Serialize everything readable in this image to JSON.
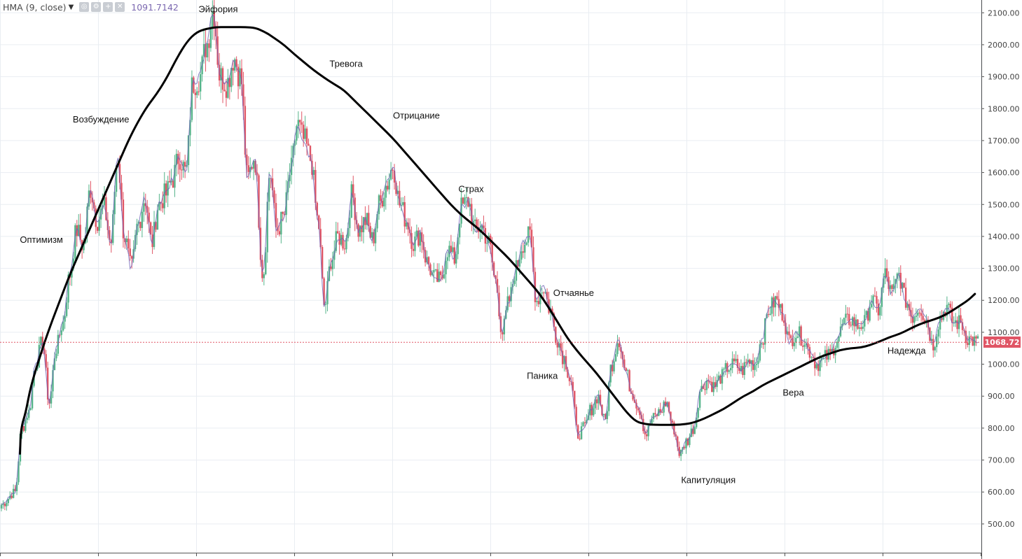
{
  "legend": {
    "indicator": "HMA (9, close)",
    "value": "1091.7142",
    "icons": [
      "settings-icon",
      "gear-icon",
      "add-icon",
      "close-icon"
    ]
  },
  "current_price": {
    "label": "1068.72",
    "value": 1068.72,
    "color": "#e05565"
  },
  "colors": {
    "up": "#55b48a",
    "down": "#e05565",
    "hma": "#6b5fb5",
    "grid": "#e9edf2",
    "axis_text": "#444444",
    "curve": "#000000"
  },
  "chart_data": {
    "type": "line",
    "ylim": [
      410,
      2140
    ],
    "xlim": [
      0,
      100
    ],
    "ytick_labels": [
      "500.00",
      "600.00",
      "700.00",
      "800.00",
      "900.00",
      "1000.00",
      "1100.00",
      "1200.00",
      "1300.00",
      "1400.00",
      "1500.00",
      "1600.00",
      "1700.00",
      "1800.00",
      "1900.00",
      "2000.00",
      "2100.00"
    ],
    "ytick_values": [
      500,
      600,
      700,
      800,
      900,
      1000,
      1100,
      1200,
      1300,
      1400,
      1500,
      1600,
      1700,
      1800,
      1900,
      2000,
      2100
    ],
    "price_anchors": [
      [
        0,
        560
      ],
      [
        1.4,
        600
      ],
      [
        2.1,
        800
      ],
      [
        2.8,
        850
      ],
      [
        3.5,
        1000
      ],
      [
        4.2,
        1070
      ],
      [
        4.9,
        880
      ],
      [
        5.6,
        1050
      ],
      [
        6.3,
        1130
      ],
      [
        7.0,
        1280
      ],
      [
        7.7,
        1420
      ],
      [
        8.4,
        1370
      ],
      [
        9.1,
        1550
      ],
      [
        9.8,
        1450
      ],
      [
        10.5,
        1490
      ],
      [
        11.2,
        1380
      ],
      [
        11.9,
        1650
      ],
      [
        12.6,
        1400
      ],
      [
        13.3,
        1300
      ],
      [
        14.0,
        1440
      ],
      [
        14.7,
        1520
      ],
      [
        15.4,
        1380
      ],
      [
        16.1,
        1500
      ],
      [
        16.8,
        1530
      ],
      [
        17.5,
        1580
      ],
      [
        18.2,
        1650
      ],
      [
        18.9,
        1600
      ],
      [
        19.6,
        1880
      ],
      [
        20.3,
        1900
      ],
      [
        21.0,
        2000
      ],
      [
        21.7,
        2110
      ],
      [
        22.4,
        1900
      ],
      [
        23.1,
        1880
      ],
      [
        23.8,
        1960
      ],
      [
        24.5,
        1900
      ],
      [
        25.2,
        1580
      ],
      [
        25.9,
        1650
      ],
      [
        26.8,
        1280
      ],
      [
        27.5,
        1600
      ],
      [
        28.2,
        1420
      ],
      [
        28.9,
        1460
      ],
      [
        29.6,
        1600
      ],
      [
        30.3,
        1750
      ],
      [
        31.0,
        1700
      ],
      [
        31.7,
        1640
      ],
      [
        32.4,
        1450
      ],
      [
        33.1,
        1180
      ],
      [
        33.8,
        1330
      ],
      [
        34.5,
        1400
      ],
      [
        35.2,
        1380
      ],
      [
        35.9,
        1530
      ],
      [
        36.6,
        1420
      ],
      [
        37.3,
        1450
      ],
      [
        38.0,
        1390
      ],
      [
        38.7,
        1500
      ],
      [
        39.4,
        1560
      ],
      [
        40.1,
        1620
      ],
      [
        40.8,
        1500
      ],
      [
        41.5,
        1450
      ],
      [
        42.2,
        1380
      ],
      [
        42.9,
        1410
      ],
      [
        43.6,
        1320
      ],
      [
        44.3,
        1270
      ],
      [
        45.0,
        1260
      ],
      [
        45.7,
        1360
      ],
      [
        46.4,
        1330
      ],
      [
        47.1,
        1490
      ],
      [
        47.8,
        1510
      ],
      [
        48.5,
        1420
      ],
      [
        49.2,
        1430
      ],
      [
        49.9,
        1380
      ],
      [
        50.6,
        1260
      ],
      [
        51.3,
        1100
      ],
      [
        52.0,
        1200
      ],
      [
        52.7,
        1300
      ],
      [
        53.4,
        1380
      ],
      [
        54.1,
        1400
      ],
      [
        54.8,
        1200
      ],
      [
        55.5,
        1240
      ],
      [
        56.2,
        1170
      ],
      [
        56.9,
        1080
      ],
      [
        57.6,
        1020
      ],
      [
        58.3,
        950
      ],
      [
        59.0,
        780
      ],
      [
        59.7,
        800
      ],
      [
        60.4,
        860
      ],
      [
        61.1,
        900
      ],
      [
        61.8,
        820
      ],
      [
        62.5,
        1000
      ],
      [
        63.2,
        1080
      ],
      [
        63.9,
        980
      ],
      [
        64.6,
        910
      ],
      [
        65.3,
        860
      ],
      [
        66.0,
        780
      ],
      [
        66.7,
        830
      ],
      [
        67.4,
        850
      ],
      [
        68.1,
        880
      ],
      [
        68.8,
        800
      ],
      [
        69.5,
        720
      ],
      [
        70.2,
        760
      ],
      [
        70.9,
        800
      ],
      [
        71.6,
        920
      ],
      [
        72.3,
        950
      ],
      [
        73.0,
        930
      ],
      [
        73.7,
        960
      ],
      [
        74.4,
        990
      ],
      [
        75.1,
        1000
      ],
      [
        75.8,
        980
      ],
      [
        76.5,
        1010
      ],
      [
        77.2,
        1000
      ],
      [
        77.9,
        1080
      ],
      [
        78.6,
        1170
      ],
      [
        79.3,
        1200
      ],
      [
        80.0,
        1160
      ],
      [
        80.7,
        1070
      ],
      [
        81.4,
        1100
      ],
      [
        82.1,
        1080
      ],
      [
        82.8,
        1040
      ],
      [
        83.5,
        1000
      ],
      [
        84.2,
        1020
      ],
      [
        84.9,
        1030
      ],
      [
        85.6,
        1080
      ],
      [
        86.3,
        1130
      ],
      [
        87.0,
        1140
      ],
      [
        87.7,
        1120
      ],
      [
        88.4,
        1130
      ],
      [
        89.1,
        1200
      ],
      [
        89.8,
        1170
      ],
      [
        90.5,
        1280
      ],
      [
        91.2,
        1220
      ],
      [
        91.9,
        1280
      ],
      [
        92.6,
        1200
      ],
      [
        93.3,
        1150
      ],
      [
        94.0,
        1180
      ],
      [
        94.7,
        1140
      ],
      [
        95.4,
        1060
      ],
      [
        96.1,
        1140
      ],
      [
        96.8,
        1180
      ],
      [
        97.5,
        1130
      ],
      [
        98.2,
        1130
      ],
      [
        99.0,
        1080
      ],
      [
        100,
        1068
      ]
    ],
    "annotations": [
      {
        "text": "Эйфория",
        "x": 22.2,
        "y": 2110
      },
      {
        "text": "Тревога",
        "x": 35.3,
        "y": 1940
      },
      {
        "text": "Возбуждение",
        "x": 10.2,
        "y": 1766
      },
      {
        "text": "Отрицание",
        "x": 42.5,
        "y": 1778
      },
      {
        "text": "Страх",
        "x": 48.1,
        "y": 1548
      },
      {
        "text": "Оптимизм",
        "x": 4.1,
        "y": 1389
      },
      {
        "text": "Отчаянье",
        "x": 58.6,
        "y": 1222
      },
      {
        "text": "Паника",
        "x": 55.4,
        "y": 963
      },
      {
        "text": "Вера",
        "x": 81.1,
        "y": 910
      },
      {
        "text": "Капитуляция",
        "x": 72.4,
        "y": 637
      },
      {
        "text": "Надежда",
        "x": 92.7,
        "y": 1042
      }
    ],
    "cycle_curve": [
      [
        1.9,
        720
      ],
      [
        2.0,
        800
      ],
      [
        2.5,
        850
      ],
      [
        3.0,
        930
      ],
      [
        4.0,
        1030
      ],
      [
        5.0,
        1120
      ],
      [
        6.0,
        1200
      ],
      [
        7.0,
        1280
      ],
      [
        8.0,
        1350
      ],
      [
        9.0,
        1420
      ],
      [
        10.0,
        1490
      ],
      [
        11.0,
        1560
      ],
      [
        12.0,
        1630
      ],
      [
        13.0,
        1700
      ],
      [
        14.0,
        1760
      ],
      [
        15.0,
        1810
      ],
      [
        16.0,
        1850
      ],
      [
        17.0,
        1900
      ],
      [
        18.0,
        1960
      ],
      [
        19.0,
        2010
      ],
      [
        20.0,
        2040
      ],
      [
        21.0,
        2050
      ],
      [
        22.0,
        2055
      ],
      [
        23.0,
        2055
      ],
      [
        24.0,
        2055
      ],
      [
        25.0,
        2055
      ],
      [
        26.0,
        2053
      ],
      [
        27.0,
        2040
      ],
      [
        28.0,
        2020
      ],
      [
        29.0,
        1998
      ],
      [
        30.0,
        1970
      ],
      [
        31.0,
        1945
      ],
      [
        32.0,
        1920
      ],
      [
        33.0,
        1898
      ],
      [
        34.0,
        1878
      ],
      [
        35.0,
        1860
      ],
      [
        36.0,
        1830
      ],
      [
        37.0,
        1800
      ],
      [
        38.0,
        1770
      ],
      [
        39.0,
        1740
      ],
      [
        40.0,
        1710
      ],
      [
        41.0,
        1675
      ],
      [
        42.0,
        1640
      ],
      [
        43.0,
        1605
      ],
      [
        44.0,
        1570
      ],
      [
        45.0,
        1535
      ],
      [
        46.0,
        1500
      ],
      [
        47.0,
        1470
      ],
      [
        48.0,
        1445
      ],
      [
        49.0,
        1420
      ],
      [
        50.0,
        1390
      ],
      [
        51.0,
        1360
      ],
      [
        52.0,
        1330
      ],
      [
        53.0,
        1295
      ],
      [
        54.0,
        1260
      ],
      [
        55.0,
        1225
      ],
      [
        56.0,
        1180
      ],
      [
        57.0,
        1130
      ],
      [
        58.0,
        1080
      ],
      [
        59.0,
        1040
      ],
      [
        60.0,
        1005
      ],
      [
        61.0,
        970
      ],
      [
        62.0,
        930
      ],
      [
        63.0,
        890
      ],
      [
        64.0,
        850
      ],
      [
        65.0,
        820
      ],
      [
        66.0,
        812
      ],
      [
        67.0,
        810
      ],
      [
        68.0,
        810
      ],
      [
        69.0,
        810
      ],
      [
        70.0,
        812
      ],
      [
        71.0,
        818
      ],
      [
        72.0,
        830
      ],
      [
        73.0,
        845
      ],
      [
        74.0,
        860
      ],
      [
        75.0,
        880
      ],
      [
        76.0,
        900
      ],
      [
        77.0,
        915
      ],
      [
        78.0,
        935
      ],
      [
        79.0,
        950
      ],
      [
        80.0,
        965
      ],
      [
        81.0,
        980
      ],
      [
        82.0,
        995
      ],
      [
        83.0,
        1010
      ],
      [
        84.0,
        1025
      ],
      [
        85.0,
        1035
      ],
      [
        86.0,
        1045
      ],
      [
        87.0,
        1050
      ],
      [
        88.0,
        1052
      ],
      [
        89.0,
        1060
      ],
      [
        90.0,
        1072
      ],
      [
        91.0,
        1085
      ],
      [
        92.0,
        1095
      ],
      [
        93.0,
        1110
      ],
      [
        94.0,
        1125
      ],
      [
        95.0,
        1135
      ],
      [
        96.0,
        1145
      ],
      [
        97.0,
        1160
      ],
      [
        98.0,
        1180
      ],
      [
        99.0,
        1200
      ],
      [
        99.7,
        1220
      ]
    ]
  }
}
